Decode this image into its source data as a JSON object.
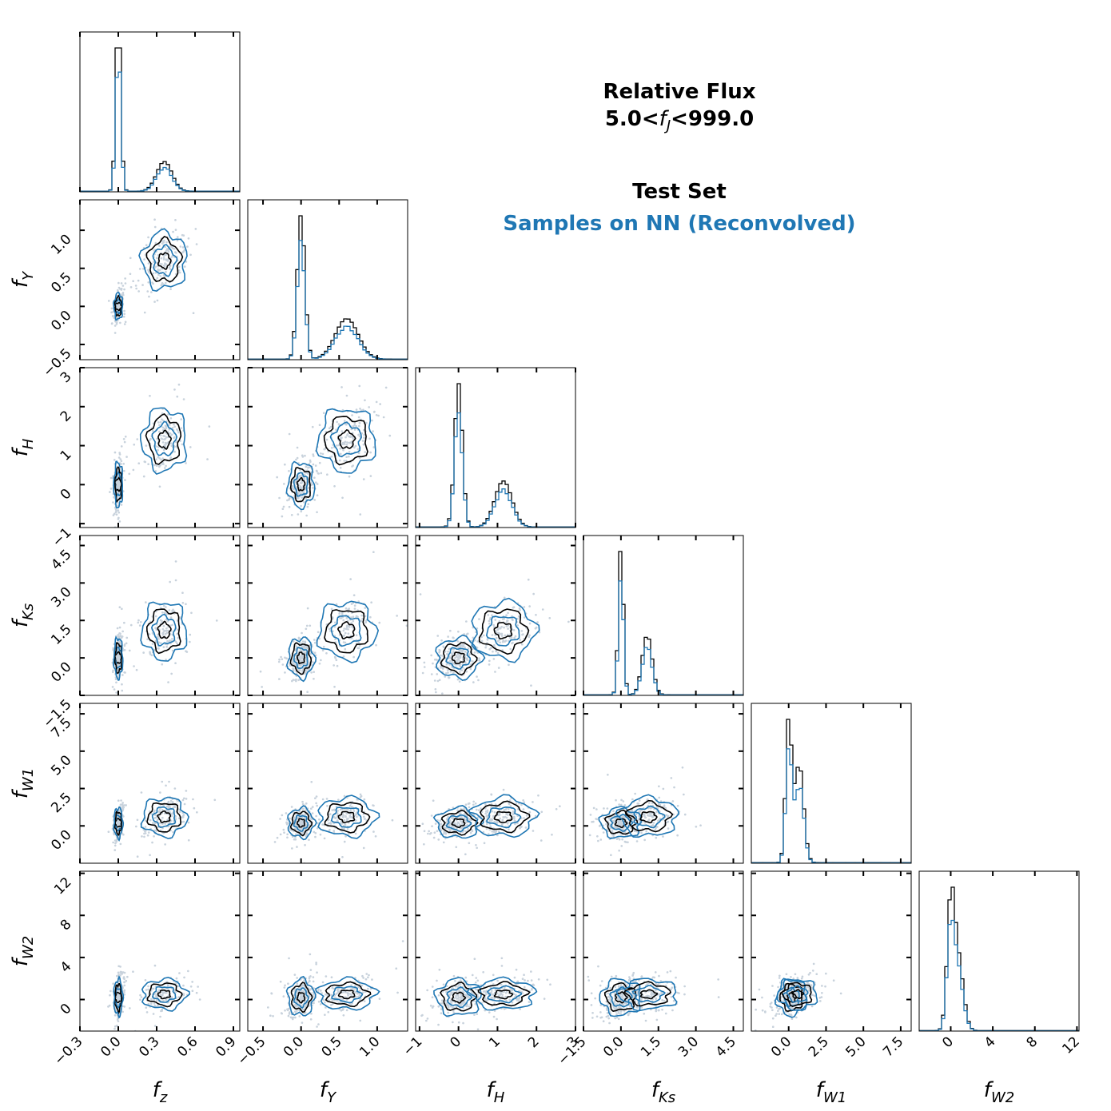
{
  "title": {
    "line1": "Relative Flux",
    "line2_prefix": "5.0<",
    "line2_var": "f",
    "line2_sub": "J",
    "line2_suffix": "<999.0",
    "legend_black": "Test Set",
    "legend_blue": "Samples on NN (Reconvolved)"
  },
  "colors": {
    "test_set": "#000000",
    "samples": "#1f77b4",
    "scatter": "#c8d2dc"
  },
  "chart_data": {
    "type": "corner",
    "series": [
      {
        "name": "Test Set",
        "color": "#000000"
      },
      {
        "name": "Samples on NN (Reconvolved)",
        "color": "#1f77b4"
      }
    ],
    "params": [
      {
        "label": "f",
        "sub": "z",
        "range": [
          -0.3,
          0.95
        ],
        "ticks": [
          -0.3,
          0.0,
          0.3,
          0.6,
          0.9
        ],
        "ticklabels": [
          "−0.3",
          "0.0",
          "0.3",
          "0.6",
          "0.9"
        ],
        "peaks": [
          [
            0.0,
            0.02,
            1.0
          ],
          [
            0.36,
            0.06,
            0.17
          ]
        ]
      },
      {
        "label": "f",
        "sub": "Y",
        "range": [
          -0.7,
          1.4
        ],
        "ticks": [
          -0.5,
          0.0,
          0.5,
          1.0
        ],
        "ticklabels": [
          "−0.5",
          "0.0",
          "0.5",
          "1.0"
        ],
        "peaks": [
          [
            0.0,
            0.05,
            1.0
          ],
          [
            0.6,
            0.15,
            0.28
          ]
        ]
      },
      {
        "label": "f",
        "sub": "H",
        "range": [
          -1.1,
          3.0
        ],
        "ticks": [
          -1,
          0,
          1,
          2,
          3
        ],
        "ticklabels": [
          "−1",
          "0",
          "1",
          "2",
          "3"
        ],
        "peaks": [
          [
            0.0,
            0.1,
            1.0
          ],
          [
            1.15,
            0.22,
            0.32
          ]
        ]
      },
      {
        "label": "f",
        "sub": "Ks",
        "range": [
          -1.5,
          4.9
        ],
        "ticks": [
          -1.5,
          0.0,
          1.5,
          3.0,
          4.5
        ],
        "ticklabels": [
          "−1.5",
          "0.0",
          "1.5",
          "3.0",
          "4.5"
        ],
        "peaks": [
          [
            0.0,
            0.1,
            1.0
          ],
          [
            1.05,
            0.2,
            0.4
          ]
        ]
      },
      {
        "label": "f",
        "sub": "W1",
        "range": [
          -2.5,
          8.2
        ],
        "ticks": [
          0.0,
          2.5,
          5.0,
          7.5
        ],
        "ticklabels": [
          "0.0",
          "2.5",
          "5.0",
          "7.5"
        ],
        "peaks": [
          [
            0.0,
            0.2,
            1.0
          ],
          [
            0.7,
            0.3,
            0.7
          ]
        ]
      },
      {
        "label": "f",
        "sub": "W2",
        "range": [
          -3.0,
          12.2
        ],
        "ticks": [
          0,
          4,
          8,
          12
        ],
        "ticklabels": [
          "0",
          "4",
          "8",
          "12"
        ],
        "peaks": [
          [
            0.0,
            0.35,
            1.0
          ],
          [
            0.7,
            0.5,
            0.6
          ]
        ]
      }
    ],
    "clusters": [
      {
        "center": [
          0.0,
          0.0,
          0.0,
          0.0,
          0.2,
          0.2
        ],
        "spread": [
          0.012,
          0.06,
          0.2,
          0.28,
          0.35,
          0.6
        ],
        "weight": 0.62
      },
      {
        "center": [
          0.36,
          0.6,
          1.15,
          1.1,
          0.6,
          0.5
        ],
        "spread": [
          0.06,
          0.13,
          0.28,
          0.4,
          0.45,
          0.5
        ],
        "weight": 0.38
      }
    ]
  }
}
